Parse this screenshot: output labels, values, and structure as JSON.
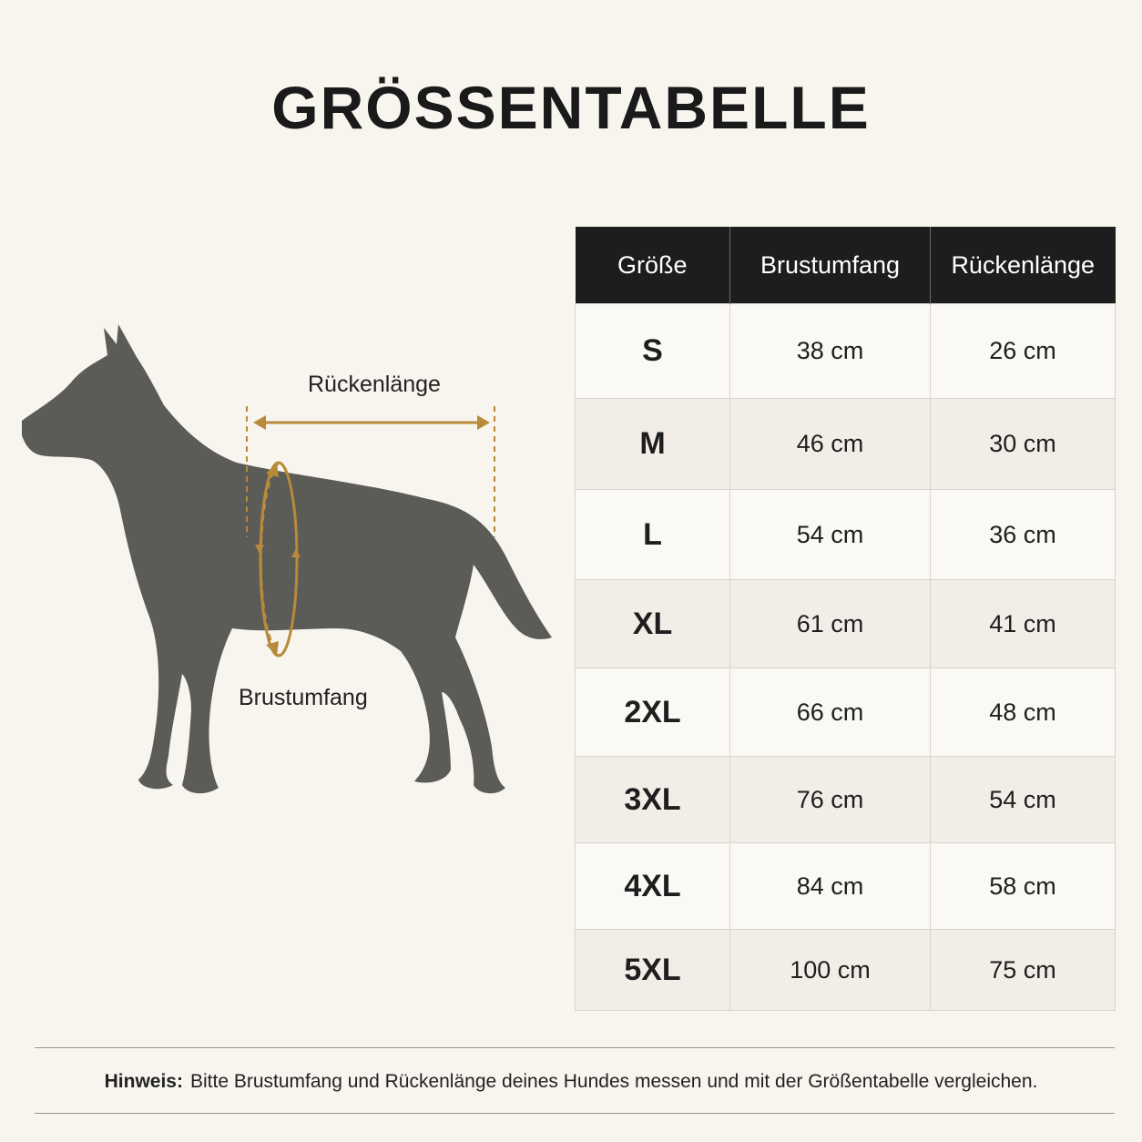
{
  "title": "GRÖSSENTABELLE",
  "diagram": {
    "back_label": "Rückenlänge",
    "chest_label": "Brustumfang",
    "dog_color": "#5b5b58",
    "measure_color": "#b88a3a"
  },
  "table": {
    "headers": [
      "Größe",
      "Brustumfang",
      "Rückenlänge"
    ],
    "rows": [
      {
        "size": "S",
        "chest": "38 cm",
        "back": "26 cm"
      },
      {
        "size": "M",
        "chest": "46 cm",
        "back": "30 cm"
      },
      {
        "size": "L",
        "chest": "54 cm",
        "back": "36 cm"
      },
      {
        "size": "XL",
        "chest": "61 cm",
        "back": "41 cm"
      },
      {
        "size": "2XL",
        "chest": "66 cm",
        "back": "48 cm"
      },
      {
        "size": "3XL",
        "chest": "76 cm",
        "back": "54 cm"
      },
      {
        "size": "4XL",
        "chest": "84 cm",
        "back": "58 cm"
      },
      {
        "size": "5XL",
        "chest": "100 cm",
        "back": "75 cm"
      }
    ]
  },
  "note": {
    "label": "Hinweis:",
    "text": "Bitte Brustumfang und Rückenlänge deines Hundes messen und mit der Größentabelle vergleichen."
  }
}
